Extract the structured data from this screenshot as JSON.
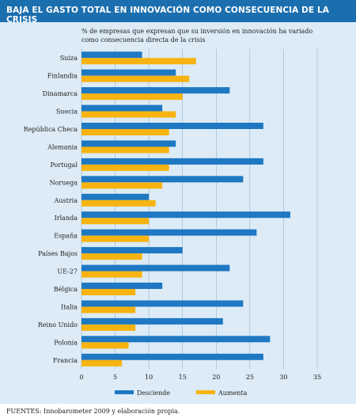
{
  "header": {
    "title": "BAJA EL GASTO TOTAL EN INNOVACIÓN COMO CONSECUENCIA DE LA CRISIS"
  },
  "subtitle": "% de empresas que expresan que su inversión en innovación ha variado como consecuencia directa de la crisis",
  "footer": "FUENTES: Innobarometer 2009 y elaboración propia.",
  "colors": {
    "desciende": "#1e78c2",
    "aumenta": "#f7b30f",
    "panel": "#dcebf6",
    "title_bg": "#1b6fae"
  },
  "chart_data": {
    "type": "bar",
    "orientation": "horizontal",
    "categories": [
      "Suiza",
      "Finlandia",
      "Dinamarca",
      "Suecia",
      "República Checa",
      "Alemania",
      "Portugal",
      "Noruega",
      "Austria",
      "Irlanda",
      "España",
      "Países Bajos",
      "UE-27",
      "Bélgica",
      "Italia",
      "Reino Unido",
      "Polonia",
      "Francia"
    ],
    "series": [
      {
        "name": "Desciende",
        "values": [
          9,
          14,
          22,
          12,
          27,
          14,
          27,
          24,
          10,
          31,
          26,
          15,
          22,
          12,
          24,
          21,
          28,
          27
        ]
      },
      {
        "name": "Aumenta",
        "values": [
          17,
          16,
          15,
          14,
          13,
          13,
          13,
          12,
          11,
          10,
          10,
          9,
          9,
          8,
          8,
          8,
          7,
          6
        ]
      }
    ],
    "xlim": [
      0,
      35
    ],
    "xticks": [
      0,
      5,
      10,
      15,
      20,
      25,
      30,
      35
    ],
    "grid": true,
    "legend_position": "bottom"
  }
}
